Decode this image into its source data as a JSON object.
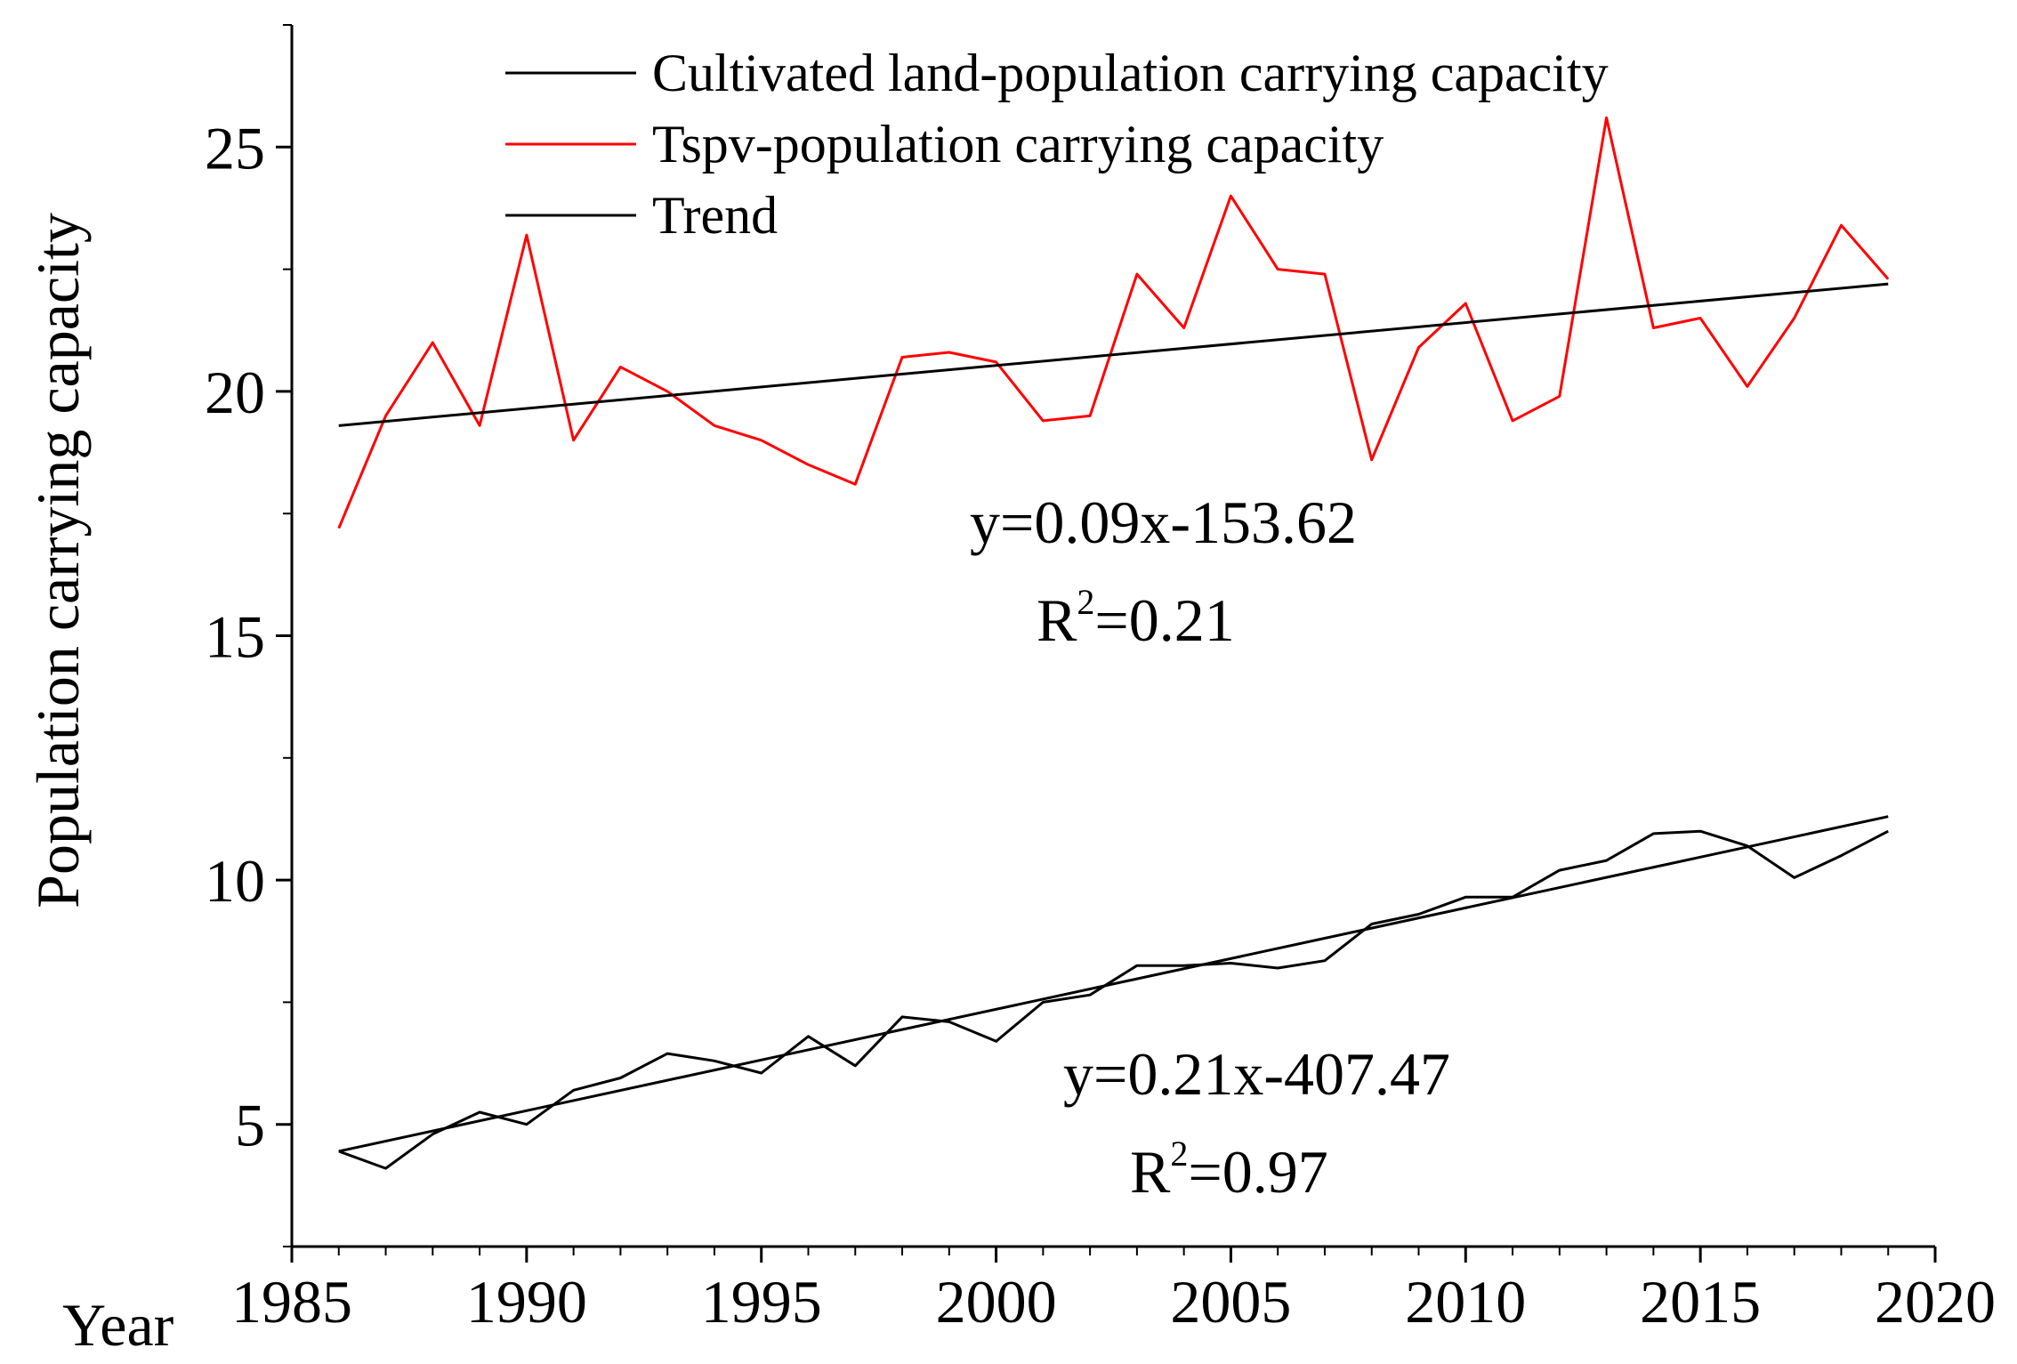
{
  "chart_data": {
    "type": "line",
    "xlabel": "Year",
    "ylabel": "Population carrying capacity",
    "xlim": [
      1985,
      2020
    ],
    "ylim": [
      2.5,
      27.5
    ],
    "xticks": [
      1985,
      1990,
      1995,
      2000,
      2005,
      2010,
      2015,
      2020
    ],
    "yticks": [
      5,
      10,
      15,
      20,
      25
    ],
    "grid": false,
    "legend_position": "top",
    "series": [
      {
        "name": "Cultivated land-population carrying capacity",
        "color": "#000000",
        "x": [
          1986,
          1987,
          1988,
          1989,
          1990,
          1991,
          1992,
          1993,
          1994,
          1995,
          1996,
          1997,
          1998,
          1999,
          2000,
          2001,
          2002,
          2003,
          2004,
          2005,
          2006,
          2007,
          2008,
          2009,
          2010,
          2011,
          2012,
          2013,
          2014,
          2015,
          2016,
          2017,
          2018,
          2019
        ],
        "values": [
          4.45,
          4.1,
          4.8,
          5.25,
          5.0,
          5.7,
          5.95,
          6.45,
          6.3,
          6.05,
          6.8,
          6.2,
          7.2,
          7.1,
          6.7,
          7.5,
          7.65,
          8.25,
          8.25,
          8.3,
          8.2,
          8.35,
          9.1,
          9.3,
          9.65,
          9.65,
          10.2,
          10.4,
          10.95,
          11.0,
          10.7,
          10.05,
          10.5,
          11.0
        ]
      },
      {
        "name": "Tspv-population carrying capacity",
        "color": "#ff0000",
        "x": [
          1986,
          1987,
          1988,
          1989,
          1990,
          1991,
          1992,
          1993,
          1994,
          1995,
          1996,
          1997,
          1998,
          1999,
          2000,
          2001,
          2002,
          2003,
          2004,
          2005,
          2006,
          2007,
          2008,
          2009,
          2010,
          2011,
          2012,
          2013,
          2014,
          2015,
          2016,
          2017,
          2018,
          2019
        ],
        "values": [
          17.2,
          19.5,
          21.0,
          19.3,
          23.2,
          19.0,
          20.5,
          20.0,
          19.3,
          19.0,
          18.5,
          18.1,
          20.7,
          20.8,
          20.6,
          19.4,
          19.5,
          22.4,
          21.3,
          24.0,
          22.5,
          22.4,
          18.6,
          20.9,
          21.8,
          19.4,
          19.9,
          25.6,
          21.3,
          21.5,
          20.1,
          21.5,
          23.4,
          22.3
        ]
      }
    ],
    "trends": [
      {
        "name": "Trend",
        "color": "#000000",
        "x": [
          1986,
          2019
        ],
        "values": [
          19.3,
          22.2
        ]
      },
      {
        "name": "Trend",
        "color": "#000000",
        "x": [
          1986,
          2019
        ],
        "values": [
          4.45,
          11.3
        ]
      }
    ],
    "annotations": [
      {
        "equation": "y=0.09x-153.62",
        "r2_prefix": "R",
        "r2_sup": "2",
        "r2_value": "=0.21"
      },
      {
        "equation": "y=0.21x-407.47",
        "r2_prefix": "R",
        "r2_sup": "2",
        "r2_value": "=0.97"
      }
    ],
    "legend": [
      {
        "label": "Cultivated land-population carrying capacity",
        "color": "#000000"
      },
      {
        "label": "Tspv-population carrying capacity",
        "color": "#ff0000"
      },
      {
        "label": "Trend",
        "color": "#000000"
      }
    ]
  }
}
